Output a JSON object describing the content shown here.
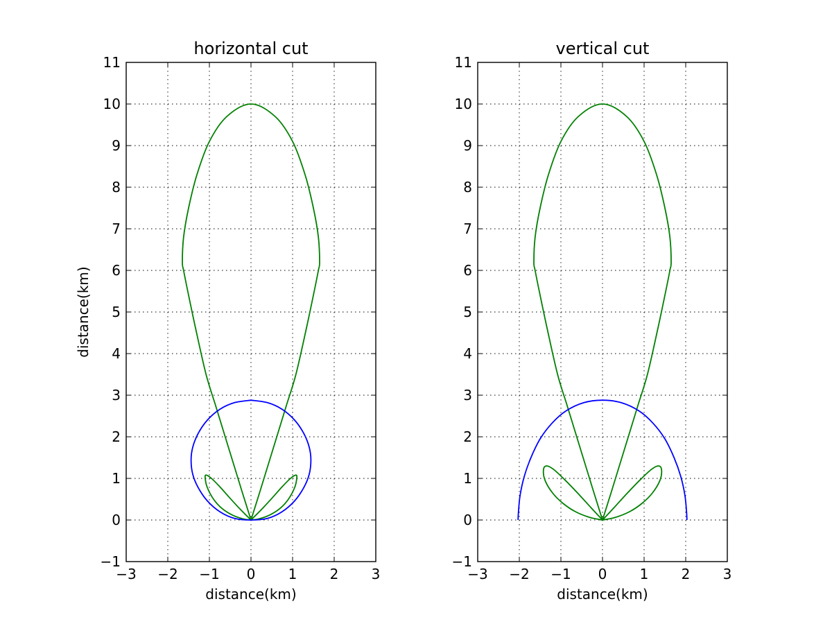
{
  "chart_data": [
    {
      "type": "line",
      "title": "horizontal cut",
      "xlabel": "distance(km)",
      "ylabel": "distance(km)",
      "xlim": [
        -3,
        3
      ],
      "ylim": [
        -1,
        11
      ],
      "xticks": [
        "−3",
        "−2",
        "−1",
        "0",
        "1",
        "2",
        "3"
      ],
      "yticks": [
        "−1",
        "0",
        "1",
        "2",
        "3",
        "4",
        "5",
        "6",
        "7",
        "8",
        "9",
        "10",
        "11"
      ],
      "grid": true,
      "series": [
        {
          "color": "#008000",
          "x": [
            0,
            0.22,
            0.42,
            0.62,
            0.85,
            1.08,
            1.33,
            1.52,
            1.62,
            1.65,
            1.62,
            1.5,
            1.3,
            1.0,
            0.58,
            0,
            -0.58,
            -1.0,
            -1.3,
            -1.5,
            -1.62,
            -1.65,
            -1.62,
            -1.52,
            -1.33,
            -1.08,
            -0.85,
            -0.62,
            -0.42,
            -0.22,
            0
          ],
          "y": [
            0,
            0.7,
            1.35,
            2.0,
            2.75,
            3.5,
            4.6,
            5.5,
            6.0,
            6.2,
            6.8,
            7.5,
            8.3,
            9.1,
            9.7,
            10.0,
            9.7,
            9.1,
            8.3,
            7.5,
            6.8,
            6.2,
            6.0,
            5.5,
            4.6,
            3.5,
            2.75,
            2.0,
            1.35,
            0.7,
            0
          ]
        },
        {
          "color": "#008000",
          "x": [
            0,
            0.2,
            0.45,
            0.7,
            0.9,
            1.05,
            1.1,
            1.08,
            0.95,
            0.75,
            0.5,
            0.25,
            0
          ],
          "y": [
            0,
            0.03,
            0.12,
            0.28,
            0.5,
            0.78,
            1.0,
            1.08,
            1.0,
            0.8,
            0.52,
            0.25,
            0
          ]
        },
        {
          "color": "#008000",
          "x": [
            0,
            -0.2,
            -0.45,
            -0.7,
            -0.9,
            -1.05,
            -1.1,
            -1.08,
            -0.95,
            -0.75,
            -0.5,
            -0.25,
            0
          ],
          "y": [
            0,
            0.03,
            0.12,
            0.28,
            0.5,
            0.78,
            1.0,
            1.08,
            1.0,
            0.8,
            0.52,
            0.25,
            0
          ]
        },
        {
          "color": "#0000ff",
          "x": [
            0,
            0.4,
            0.75,
            1.05,
            1.27,
            1.4,
            1.44,
            1.4,
            1.27,
            1.05,
            0.75,
            0.4,
            0,
            -0.4,
            -0.75,
            -1.05,
            -1.27,
            -1.4,
            -1.44,
            -1.4,
            -1.27,
            -1.05,
            -0.75,
            -0.4,
            0
          ],
          "y": [
            2.88,
            2.82,
            2.66,
            2.4,
            2.08,
            1.75,
            1.44,
            1.1,
            0.78,
            0.46,
            0.2,
            0.04,
            0,
            0.04,
            0.2,
            0.46,
            0.78,
            1.1,
            1.44,
            1.75,
            2.08,
            2.4,
            2.66,
            2.82,
            2.88
          ]
        }
      ]
    },
    {
      "type": "line",
      "title": "vertical cut",
      "xlabel": "distance(km)",
      "ylabel": "",
      "xlim": [
        -3,
        3
      ],
      "ylim": [
        -1,
        11
      ],
      "xticks": [
        "−3",
        "−2",
        "−1",
        "0",
        "1",
        "2",
        "3"
      ],
      "yticks": [
        "−1",
        "0",
        "1",
        "2",
        "3",
        "4",
        "5",
        "6",
        "7",
        "8",
        "9",
        "10",
        "11"
      ],
      "grid": true,
      "series": [
        {
          "color": "#008000",
          "x": [
            0,
            0.22,
            0.42,
            0.62,
            0.85,
            1.08,
            1.33,
            1.52,
            1.62,
            1.65,
            1.62,
            1.5,
            1.3,
            1.0,
            0.58,
            0,
            -0.58,
            -1.0,
            -1.3,
            -1.5,
            -1.62,
            -1.65,
            -1.62,
            -1.52,
            -1.33,
            -1.08,
            -0.85,
            -0.62,
            -0.42,
            -0.22,
            0
          ],
          "y": [
            0,
            0.7,
            1.35,
            2.0,
            2.75,
            3.5,
            4.6,
            5.5,
            6.0,
            6.2,
            6.8,
            7.5,
            8.3,
            9.1,
            9.7,
            10.0,
            9.7,
            9.1,
            8.3,
            7.5,
            6.8,
            6.2,
            6.0,
            5.5,
            4.6,
            3.5,
            2.75,
            2.0,
            1.35,
            0.7,
            0
          ]
        },
        {
          "color": "#008000",
          "x": [
            0,
            0.3,
            0.65,
            0.95,
            1.2,
            1.38,
            1.42,
            1.35,
            1.18,
            0.92,
            0.6,
            0.28,
            0
          ],
          "y": [
            0,
            0.06,
            0.2,
            0.4,
            0.65,
            0.95,
            1.2,
            1.3,
            1.22,
            0.98,
            0.65,
            0.3,
            0
          ]
        },
        {
          "color": "#008000",
          "x": [
            0,
            -0.3,
            -0.65,
            -0.95,
            -1.2,
            -1.38,
            -1.42,
            -1.35,
            -1.18,
            -0.92,
            -0.6,
            -0.28,
            0
          ],
          "y": [
            0,
            0.06,
            0.2,
            0.4,
            0.65,
            0.95,
            1.2,
            1.3,
            1.22,
            0.98,
            0.65,
            0.3,
            0
          ]
        },
        {
          "color": "#0000ff",
          "x": [
            -2.03,
            -2.02,
            -1.98,
            -1.88,
            -1.72,
            -1.5,
            -1.22,
            -0.88,
            -0.45,
            0,
            0.45,
            0.88,
            1.22,
            1.5,
            1.72,
            1.88,
            1.98,
            2.02,
            2.03
          ],
          "y": [
            0,
            0.2,
            0.6,
            1.05,
            1.5,
            1.95,
            2.32,
            2.62,
            2.82,
            2.88,
            2.82,
            2.62,
            2.32,
            1.95,
            1.5,
            1.05,
            0.6,
            0.2,
            0
          ]
        }
      ]
    }
  ]
}
